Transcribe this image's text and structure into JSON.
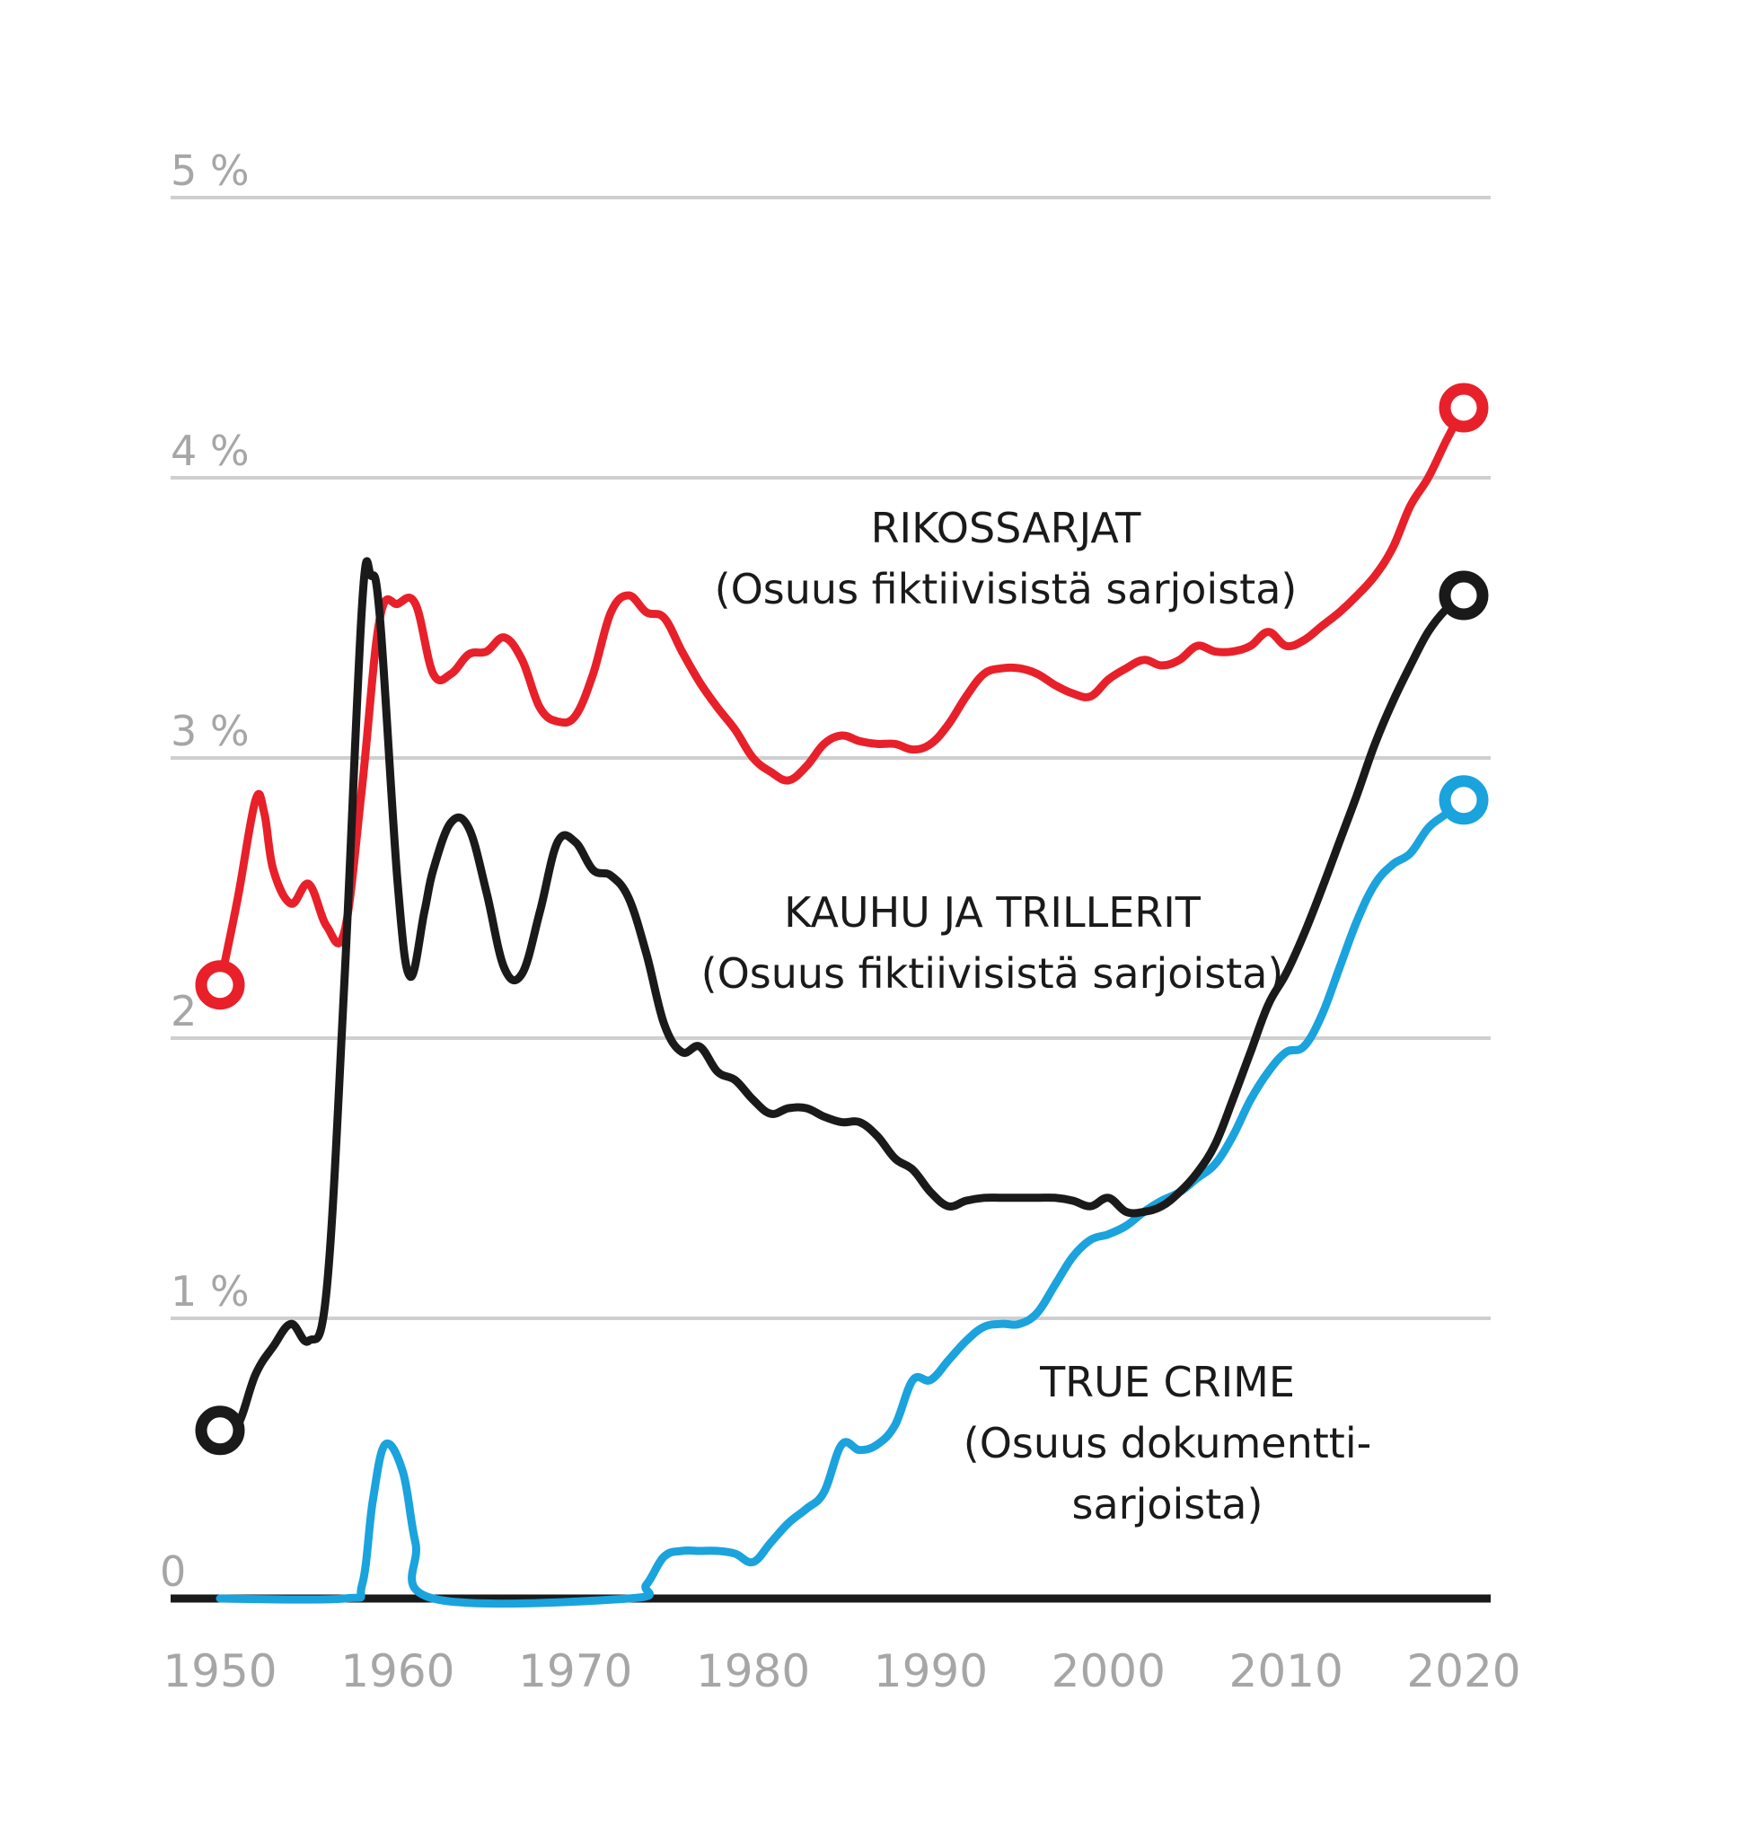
{
  "chart_data": {
    "type": "line",
    "ylim": [
      0,
      5
    ],
    "xlim": [
      1950,
      2020
    ],
    "grid": true,
    "y_ticks": [
      {
        "value": 0,
        "label": "0"
      },
      {
        "value": 1,
        "label": "1 %"
      },
      {
        "value": 2,
        "label": "2"
      },
      {
        "value": 3,
        "label": "3 %"
      },
      {
        "value": 4,
        "label": "4 %"
      },
      {
        "value": 5,
        "label": "5 %"
      }
    ],
    "x_ticks": [
      {
        "value": 1950,
        "label": "1950"
      },
      {
        "value": 1960,
        "label": "1960"
      },
      {
        "value": 1970,
        "label": "1970"
      },
      {
        "value": 1980,
        "label": "1980"
      },
      {
        "value": 1990,
        "label": "1990"
      },
      {
        "value": 2000,
        "label": "2000"
      },
      {
        "value": 2010,
        "label": "2010"
      },
      {
        "value": 2020,
        "label": "2020"
      }
    ],
    "series": [
      {
        "id": "crime",
        "color": "#e8202a",
        "label_lines": [
          "RIKOSSARJAT",
          "(Osuus fiktiivisistä sarjoista)"
        ],
        "points": [
          [
            1950,
            2.19
          ],
          [
            1951,
            2.5
          ],
          [
            1952,
            2.85
          ],
          [
            1952.5,
            2.8
          ],
          [
            1953,
            2.6
          ],
          [
            1954,
            2.48
          ],
          [
            1955,
            2.55
          ],
          [
            1956,
            2.4
          ],
          [
            1957,
            2.38
          ],
          [
            1958,
            2.9
          ],
          [
            1959,
            3.5
          ],
          [
            1960,
            3.55
          ],
          [
            1961,
            3.55
          ],
          [
            1962,
            3.3
          ],
          [
            1963,
            3.3
          ],
          [
            1964,
            3.37
          ],
          [
            1965,
            3.38
          ],
          [
            1966,
            3.43
          ],
          [
            1967,
            3.35
          ],
          [
            1968,
            3.18
          ],
          [
            1969,
            3.13
          ],
          [
            1970,
            3.15
          ],
          [
            1971,
            3.3
          ],
          [
            1972,
            3.52
          ],
          [
            1973,
            3.58
          ],
          [
            1974,
            3.52
          ],
          [
            1975,
            3.5
          ],
          [
            1976,
            3.38
          ],
          [
            1977,
            3.27
          ],
          [
            1978,
            3.18
          ],
          [
            1979,
            3.1
          ],
          [
            1980,
            3.0
          ],
          [
            1981,
            2.95
          ],
          [
            1982,
            2.92
          ],
          [
            1983,
            2.97
          ],
          [
            1984,
            3.05
          ],
          [
            1985,
            3.08
          ],
          [
            1986,
            3.06
          ],
          [
            1987,
            3.05
          ],
          [
            1988,
            3.05
          ],
          [
            1989,
            3.03
          ],
          [
            1990,
            3.05
          ],
          [
            1991,
            3.12
          ],
          [
            1992,
            3.22
          ],
          [
            1993,
            3.3
          ],
          [
            1994,
            3.32
          ],
          [
            1995,
            3.32
          ],
          [
            1996,
            3.3
          ],
          [
            1997,
            3.26
          ],
          [
            1998,
            3.23
          ],
          [
            1999,
            3.22
          ],
          [
            2000,
            3.28
          ],
          [
            2001,
            3.32
          ],
          [
            2002,
            3.35
          ],
          [
            2003,
            3.33
          ],
          [
            2004,
            3.35
          ],
          [
            2005,
            3.4
          ],
          [
            2006,
            3.38
          ],
          [
            2007,
            3.38
          ],
          [
            2008,
            3.4
          ],
          [
            2009,
            3.45
          ],
          [
            2010,
            3.4
          ],
          [
            2011,
            3.42
          ],
          [
            2012,
            3.47
          ],
          [
            2013,
            3.52
          ],
          [
            2014,
            3.58
          ],
          [
            2015,
            3.65
          ],
          [
            2016,
            3.75
          ],
          [
            2017,
            3.9
          ],
          [
            2018,
            4.0
          ],
          [
            2019,
            4.13
          ],
          [
            2020,
            4.25
          ]
        ]
      },
      {
        "id": "horror",
        "color": "#1a1a1a",
        "label_lines": [
          "KAUHU JA TRILLERIT",
          "(Osuus fiktiivisistä sarjoista)"
        ],
        "points": [
          [
            1950,
            0.6
          ],
          [
            1951,
            0.62
          ],
          [
            1952,
            0.8
          ],
          [
            1953,
            0.9
          ],
          [
            1954,
            0.98
          ],
          [
            1955,
            0.92
          ],
          [
            1956,
            1.1
          ],
          [
            1957,
            2.2
          ],
          [
            1958,
            3.55
          ],
          [
            1958.5,
            3.65
          ],
          [
            1959,
            3.5
          ],
          [
            1960,
            2.55
          ],
          [
            1960.7,
            2.22
          ],
          [
            1961.5,
            2.45
          ],
          [
            1962,
            2.6
          ],
          [
            1963,
            2.77
          ],
          [
            1964,
            2.75
          ],
          [
            1965,
            2.52
          ],
          [
            1966,
            2.25
          ],
          [
            1967,
            2.23
          ],
          [
            1968,
            2.45
          ],
          [
            1969,
            2.7
          ],
          [
            1970,
            2.7
          ],
          [
            1971,
            2.6
          ],
          [
            1972,
            2.58
          ],
          [
            1973,
            2.5
          ],
          [
            1974,
            2.3
          ],
          [
            1975,
            2.05
          ],
          [
            1976,
            1.95
          ],
          [
            1977,
            1.97
          ],
          [
            1978,
            1.88
          ],
          [
            1979,
            1.85
          ],
          [
            1980,
            1.78
          ],
          [
            1981,
            1.73
          ],
          [
            1982,
            1.75
          ],
          [
            1983,
            1.75
          ],
          [
            1984,
            1.72
          ],
          [
            1985,
            1.7
          ],
          [
            1986,
            1.7
          ],
          [
            1987,
            1.65
          ],
          [
            1988,
            1.57
          ],
          [
            1989,
            1.53
          ],
          [
            1990,
            1.45
          ],
          [
            1991,
            1.4
          ],
          [
            1992,
            1.42
          ],
          [
            1993,
            1.43
          ],
          [
            1994,
            1.43
          ],
          [
            1995,
            1.43
          ],
          [
            1996,
            1.43
          ],
          [
            1997,
            1.43
          ],
          [
            1998,
            1.42
          ],
          [
            1999,
            1.4
          ],
          [
            2000,
            1.43
          ],
          [
            2001,
            1.38
          ],
          [
            2002,
            1.38
          ],
          [
            2003,
            1.4
          ],
          [
            2004,
            1.45
          ],
          [
            2005,
            1.52
          ],
          [
            2006,
            1.62
          ],
          [
            2007,
            1.78
          ],
          [
            2008,
            1.95
          ],
          [
            2009,
            2.12
          ],
          [
            2010,
            2.23
          ],
          [
            2011,
            2.37
          ],
          [
            2012,
            2.53
          ],
          [
            2013,
            2.7
          ],
          [
            2014,
            2.87
          ],
          [
            2015,
            3.05
          ],
          [
            2016,
            3.2
          ],
          [
            2017,
            3.33
          ],
          [
            2018,
            3.45
          ],
          [
            2019,
            3.53
          ],
          [
            2020,
            3.58
          ]
        ]
      },
      {
        "id": "truecrime",
        "color": "#1aa3dd",
        "label_lines": [
          "TRUE CRIME",
          "(Osuus dokumentti-",
          "sarjoista)"
        ],
        "points": [
          [
            1950,
            0
          ],
          [
            1957,
            0
          ],
          [
            1958,
            0.05
          ],
          [
            1958.6,
            0.35
          ],
          [
            1959.3,
            0.55
          ],
          [
            1960.3,
            0.45
          ],
          [
            1961,
            0.2
          ],
          [
            1962,
            0
          ],
          [
            1973,
            0
          ],
          [
            1974,
            0.05
          ],
          [
            1975,
            0.15
          ],
          [
            1976,
            0.17
          ],
          [
            1977,
            0.17
          ],
          [
            1978,
            0.17
          ],
          [
            1979,
            0.16
          ],
          [
            1980,
            0.13
          ],
          [
            1981,
            0.2
          ],
          [
            1982,
            0.27
          ],
          [
            1983,
            0.32
          ],
          [
            1984,
            0.38
          ],
          [
            1985,
            0.55
          ],
          [
            1986,
            0.53
          ],
          [
            1987,
            0.55
          ],
          [
            1988,
            0.62
          ],
          [
            1989,
            0.78
          ],
          [
            1990,
            0.78
          ],
          [
            1991,
            0.85
          ],
          [
            1992,
            0.92
          ],
          [
            1993,
            0.97
          ],
          [
            1994,
            0.98
          ],
          [
            1995,
            0.98
          ],
          [
            1996,
            1.02
          ],
          [
            1997,
            1.12
          ],
          [
            1998,
            1.22
          ],
          [
            1999,
            1.28
          ],
          [
            2000,
            1.3
          ],
          [
            2001,
            1.33
          ],
          [
            2002,
            1.38
          ],
          [
            2003,
            1.42
          ],
          [
            2004,
            1.45
          ],
          [
            2005,
            1.5
          ],
          [
            2006,
            1.55
          ],
          [
            2007,
            1.65
          ],
          [
            2008,
            1.78
          ],
          [
            2009,
            1.88
          ],
          [
            2010,
            1.95
          ],
          [
            2011,
            1.97
          ],
          [
            2012,
            2.08
          ],
          [
            2013,
            2.25
          ],
          [
            2014,
            2.42
          ],
          [
            2015,
            2.55
          ],
          [
            2016,
            2.62
          ],
          [
            2017,
            2.66
          ],
          [
            2018,
            2.75
          ],
          [
            2019,
            2.8
          ],
          [
            2020,
            2.85
          ]
        ]
      }
    ]
  }
}
